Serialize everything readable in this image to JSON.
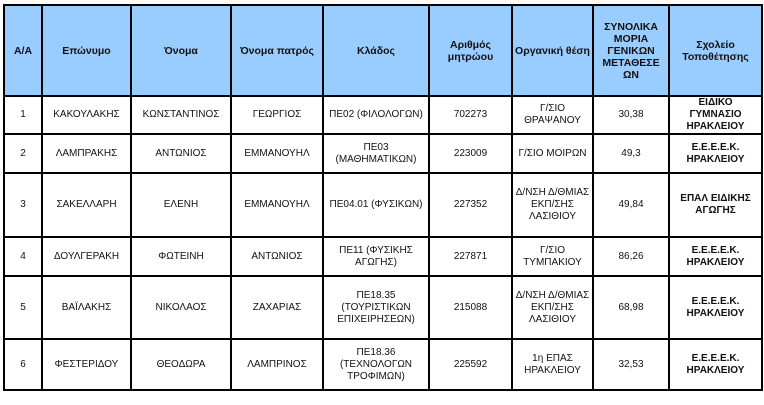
{
  "table": {
    "headers": [
      "Α/Α",
      "Επώνυμο",
      "Όνομα",
      "Όνομα πατρός",
      "Κλάδος",
      "Αριθμός μητρώου",
      "Οργανική θέση",
      "ΣΥΝΟΛΙΚΑ ΜΟΡΙΑ ΓΕΝΙΚΩΝ ΜΕΤΑΘΕΣΕ ΩΝ",
      "Σχολείο Τοποθέτησης"
    ],
    "header_color": "#99ccff",
    "rows": [
      [
        "1",
        "ΚΑΚΟΥΛΑΚΗΣ",
        "ΚΩΝΣΤΑΝΤΙΝΟΣ",
        "ΓΕΩΡΓΙΟΣ",
        "ΠΕ02 (ΦΙΛΟΛΟΓΩΝ)",
        "702273",
        "Γ/ΣΙΟ ΘΡΑΨΑΝΟΥ",
        "30,38",
        "ΕΙΔΙΚΟ ΓΥΜΝΑΣΙΟ ΗΡΑΚΛΕΙΟΥ"
      ],
      [
        "2",
        "ΛΑΜΠΡΑΚΗΣ",
        "ΑΝΤΩΝΙΟΣ",
        "ΕΜΜΑΝΟΥΗΛ",
        "ΠΕ03 (ΜΑΘΗΜΑΤΙΚΩΝ)",
        "223009",
        "Γ/ΣΙΟ ΜΟΙΡΩΝ",
        "49,3",
        "Ε.Ε.Ε.Ε.Κ. ΗΡΑΚΛΕΙΟΥ"
      ],
      [
        "3",
        "ΣΑΚΕΛΛΑΡΗ",
        "ΕΛΕΝΗ",
        "ΕΜΜΑΝΟΥΗΛ",
        "ΠΕ04.01 (ΦΥΣΙΚΩΝ)",
        "227352",
        "Δ/ΝΣΗ Δ/ΘΜΙΑΣ ΕΚΠ/ΣΗΣ ΛΑΣΙΘΙΟΥ",
        "49,84",
        "ΕΠΑΛ ΕΙΔΙΚΗΣ ΑΓΩΓΗΣ"
      ],
      [
        "4",
        "ΔΟΥΛΓΕΡΑΚΗ",
        "ΦΩΤΕΙΝΗ",
        "ΑΝΤΩΝΙΟΣ",
        "ΠΕ11 (ΦΥΣΙΚΗΣ ΑΓΩΓΗΣ)",
        "227871",
        "Γ/ΣΙΟ ΤΥΜΠΑΚΙΟΥ",
        "86,26",
        "Ε.Ε.Ε.Ε.Κ. ΗΡΑΚΛΕΙΟΥ"
      ],
      [
        "5",
        "ΒΑΪΛΑΚΗΣ",
        "ΝΙΚΟΛΑΟΣ",
        "ΖΑΧΑΡΙΑΣ",
        "ΠΕ18.35 (ΤΟΥΡΙΣΤΙΚΩΝ ΕΠΙΧΕΙΡΗΣΕΩΝ)",
        "215088",
        "Δ/ΝΣΗ Δ/ΘΜΙΑΣ ΕΚΠ/ΣΗΣ ΛΑΣΙΘΙΟΥ",
        "68,98",
        "Ε.Ε.Ε.Ε.Κ. ΗΡΑΚΛΕΙΟΥ"
      ],
      [
        "6",
        "ΦΕΣΤΕΡΙΔΟΥ",
        "ΘΕΟΔΩΡΑ",
        "ΛΑΜΠΡΙΝΟΣ",
        "ΠΕ18.36 (ΤΕΧΝΟΛΟΓΩΝ ΤΡΟΦΙΜΩΝ)",
        "225592",
        "1η ΕΠΑΣ ΗΡΑΚΛΕΙΟΥ",
        "32,53",
        "Ε.Ε.Ε.Ε.Κ. ΗΡΑΚΛΕΙΟΥ"
      ]
    ]
  }
}
